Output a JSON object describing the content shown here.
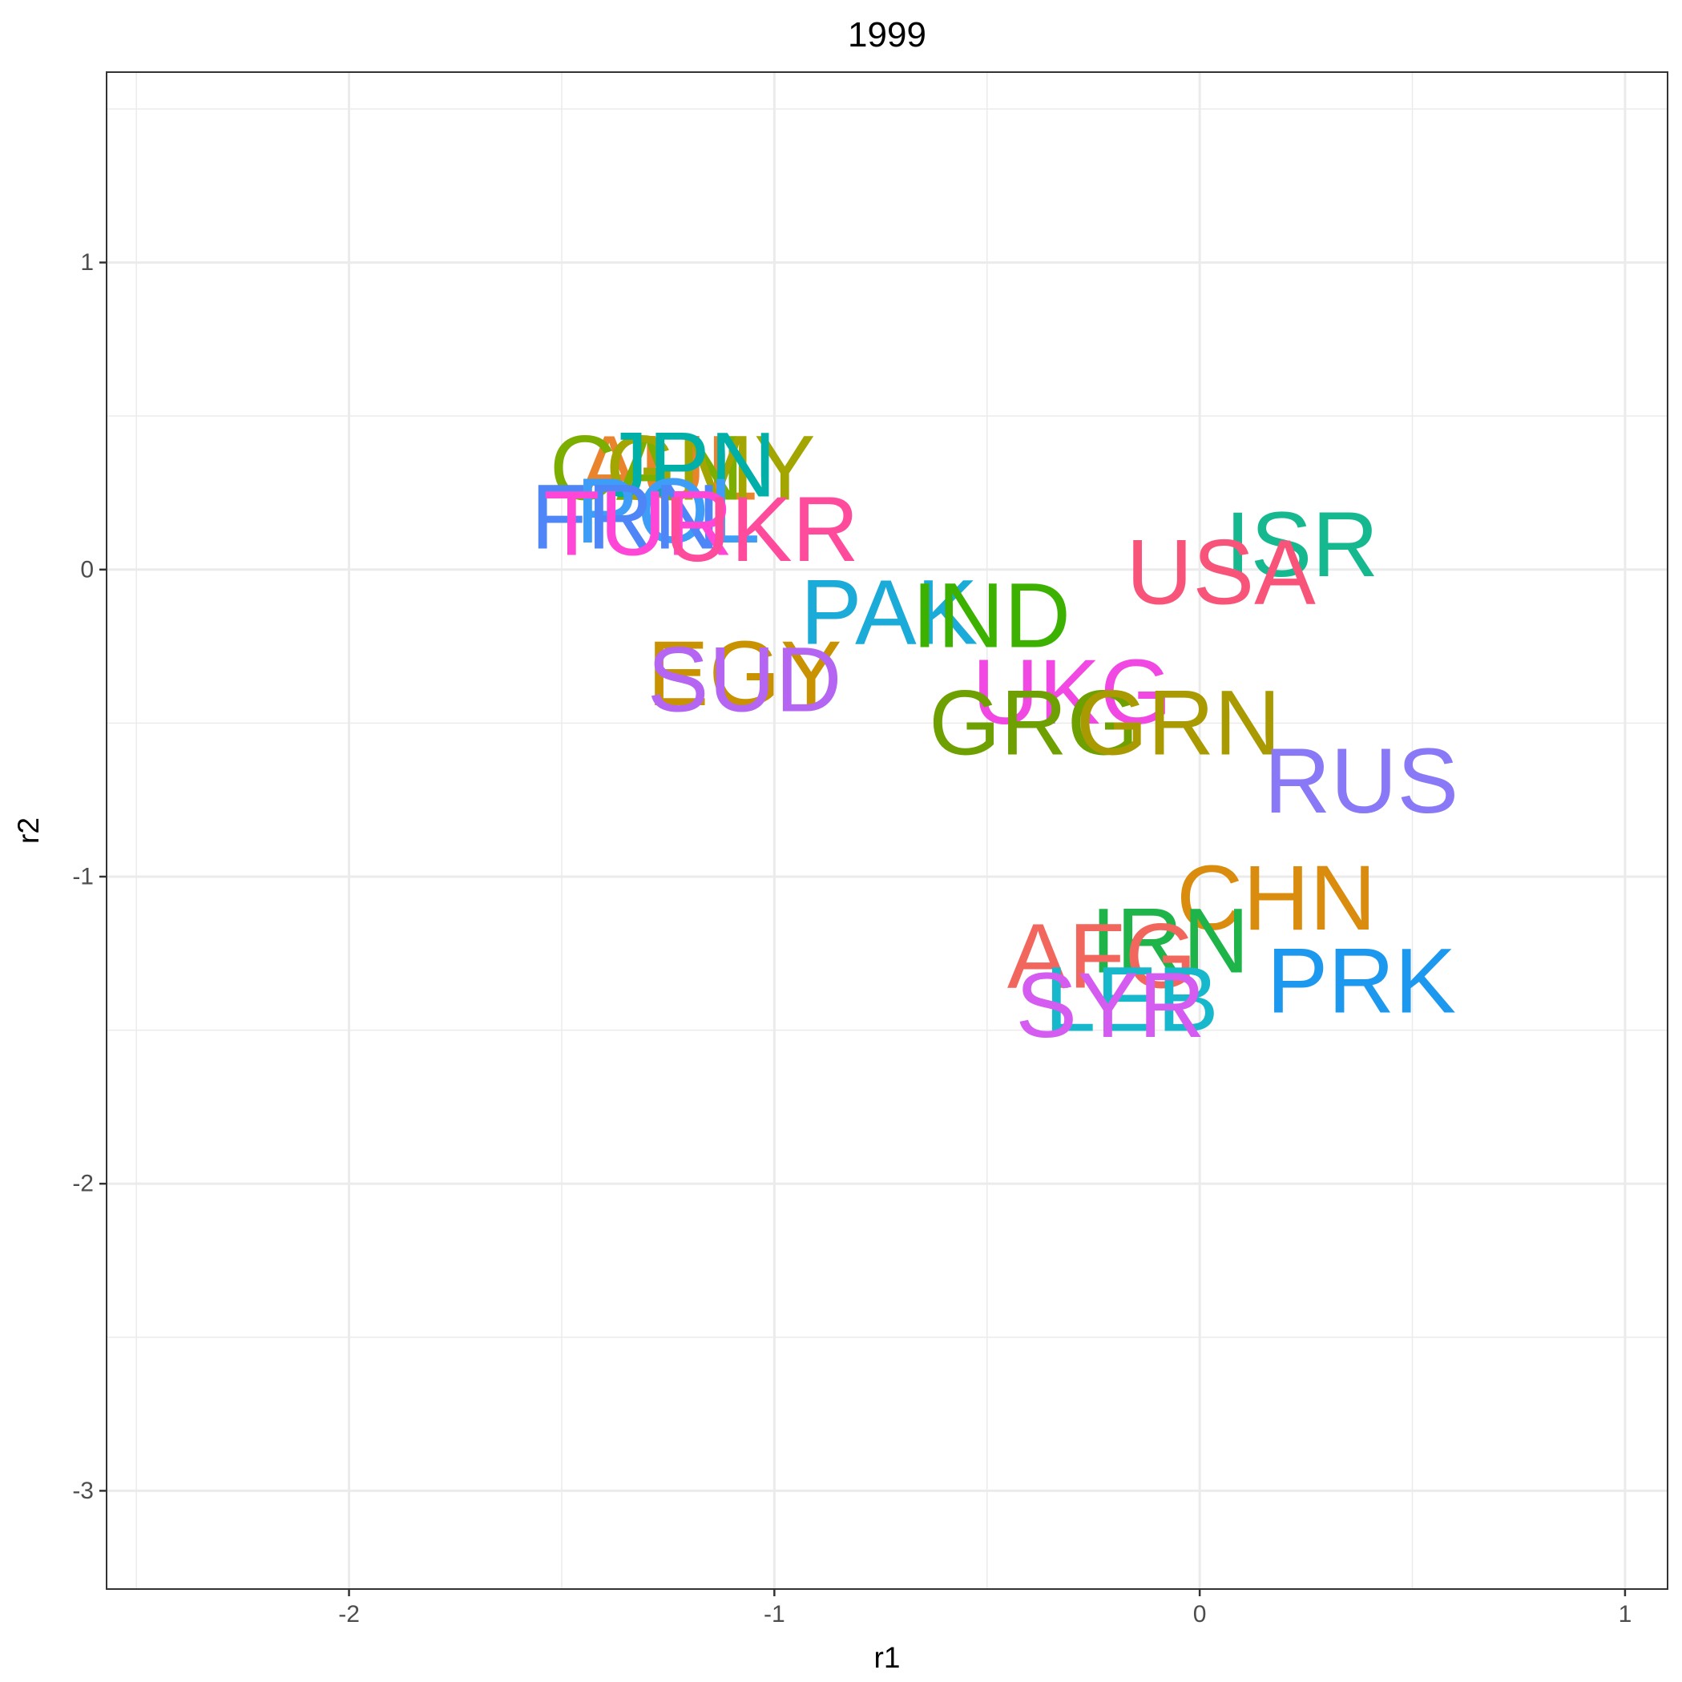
{
  "chart_data": {
    "type": "scatter",
    "title": "1999",
    "xlabel": "r1",
    "ylabel": "r2",
    "xlim": [
      -2.57,
      1.1
    ],
    "ylim": [
      -3.32,
      1.62
    ],
    "x_ticks": [
      -2,
      -1,
      0,
      1
    ],
    "y_ticks": [
      1,
      0,
      -1,
      -2,
      -3
    ],
    "x_tick_labels": [
      "-2",
      "-1",
      "0",
      "1"
    ],
    "y_tick_labels": [
      "1",
      "0",
      "-1",
      "-2",
      "-3"
    ],
    "grid": true,
    "points": [
      {
        "label": "AUL",
        "x": -1.25,
        "y": 0.33,
        "color": "#e9842c"
      },
      {
        "label": "CAN",
        "x": -1.3,
        "y": 0.33,
        "color": "#7cae00"
      },
      {
        "label": "GMY",
        "x": -1.15,
        "y": 0.33,
        "color": "#a3a500"
      },
      {
        "label": "JPN",
        "x": -1.2,
        "y": 0.34,
        "color": "#00b0a8"
      },
      {
        "label": "POL",
        "x": -1.25,
        "y": 0.19,
        "color": "#3e9ef7"
      },
      {
        "label": "FRN",
        "x": -1.35,
        "y": 0.17,
        "color": "#4f86f7"
      },
      {
        "label": "TUR",
        "x": -1.32,
        "y": 0.15,
        "color": "#ff46d6"
      },
      {
        "label": "UKR",
        "x": -1.03,
        "y": 0.13,
        "color": "#ff4b9c"
      },
      {
        "label": "ISR",
        "x": 0.24,
        "y": 0.08,
        "color": "#16b890"
      },
      {
        "label": "USA",
        "x": 0.05,
        "y": -0.01,
        "color": "#f8547a"
      },
      {
        "label": "PAK",
        "x": -0.73,
        "y": -0.14,
        "color": "#1aabd9"
      },
      {
        "label": "IND",
        "x": -0.49,
        "y": -0.15,
        "color": "#3cb100"
      },
      {
        "label": "EGY",
        "x": -1.07,
        "y": -0.34,
        "color": "#c99200"
      },
      {
        "label": "SUD",
        "x": -1.07,
        "y": -0.36,
        "color": "#b466f3"
      },
      {
        "label": "UKG",
        "x": -0.3,
        "y": -0.4,
        "color": "#f248e3"
      },
      {
        "label": "GRG",
        "x": -0.39,
        "y": -0.5,
        "color": "#6da000"
      },
      {
        "label": "GRN",
        "x": -0.05,
        "y": -0.5,
        "color": "#a89a00"
      },
      {
        "label": "RUS",
        "x": 0.38,
        "y": -0.69,
        "color": "#8a79f6"
      },
      {
        "label": "CHN",
        "x": 0.18,
        "y": -1.07,
        "color": "#d98c0d"
      },
      {
        "label": "IRN",
        "x": -0.07,
        "y": -1.21,
        "color": "#1eb44a"
      },
      {
        "label": "AFG",
        "x": -0.23,
        "y": -1.26,
        "color": "#f2675d"
      },
      {
        "label": "PRK",
        "x": 0.38,
        "y": -1.34,
        "color": "#1c99ee"
      },
      {
        "label": "LEB",
        "x": -0.16,
        "y": -1.4,
        "color": "#17b8cc"
      },
      {
        "label": "SYR",
        "x": -0.21,
        "y": -1.42,
        "color": "#d55cf0"
      }
    ]
  }
}
